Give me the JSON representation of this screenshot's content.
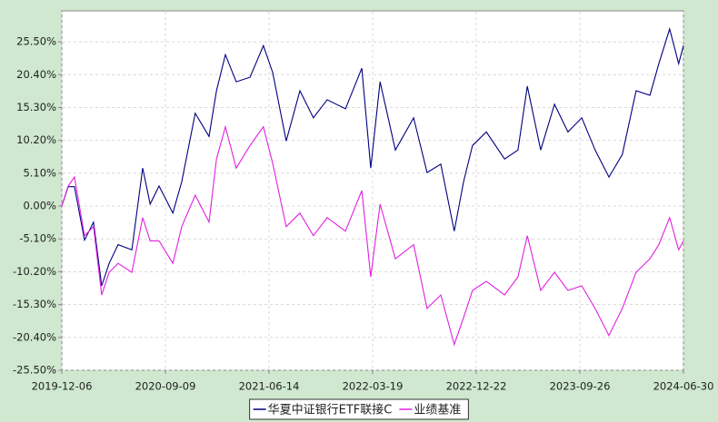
{
  "chart_data": {
    "type": "line",
    "x": [
      "2019-12-06",
      "2019-12-23",
      "2020-01-09",
      "2020-02-05",
      "2020-02-29",
      "2020-03-22",
      "2020-04-11",
      "2020-05-05",
      "2020-06-11",
      "2020-07-10",
      "2020-07-30",
      "2020-08-23",
      "2020-09-29",
      "2020-10-23",
      "2020-11-28",
      "2021-01-04",
      "2021-01-24",
      "2021-02-17",
      "2021-03-18",
      "2021-04-24",
      "2021-05-30",
      "2021-06-24",
      "2021-07-30",
      "2021-09-05",
      "2021-10-11",
      "2021-11-17",
      "2022-01-05",
      "2022-02-18",
      "2022-03-14",
      "2022-04-08",
      "2022-05-19",
      "2022-07-07",
      "2022-08-12",
      "2022-09-18",
      "2022-10-24",
      "2022-11-18",
      "2022-12-12",
      "2023-01-18",
      "2023-03-08",
      "2023-04-13",
      "2023-05-08",
      "2023-06-13",
      "2023-07-20",
      "2023-08-25",
      "2023-10-01",
      "2023-11-06",
      "2023-12-13",
      "2024-01-18",
      "2024-02-24",
      "2024-04-01",
      "2024-04-25",
      "2024-05-24",
      "2024-06-17",
      "2024-06-30"
    ],
    "series": [
      {
        "name": "华夏中证银行ETF联接C",
        "color": "#000080",
        "values": [
          0,
          3.0,
          3.0,
          -5.3,
          -2.5,
          -12.4,
          -8.9,
          -6.0,
          -6.8,
          5.9,
          0.3,
          3.1,
          -1.1,
          3.8,
          14.4,
          10.8,
          17.9,
          23.5,
          19.3,
          20.0,
          24.9,
          20.7,
          10.1,
          17.9,
          13.7,
          16.5,
          15.1,
          21.4,
          5.9,
          19.3,
          8.7,
          13.7,
          5.2,
          6.5,
          -3.9,
          3.8,
          9.4,
          11.5,
          7.3,
          8.7,
          18.6,
          8.7,
          15.8,
          11.5,
          13.7,
          8.7,
          4.5,
          8.0,
          17.9,
          17.2,
          22.1,
          27.5,
          22.1,
          24.9
        ]
      },
      {
        "name": "业绩基准",
        "color": "#e020e0",
        "values": [
          0,
          3.1,
          4.5,
          -4.6,
          -3.2,
          -13.8,
          -10.3,
          -8.9,
          -10.3,
          -1.8,
          -5.4,
          -5.4,
          -8.9,
          -3.2,
          1.7,
          -2.5,
          7.3,
          12.3,
          5.9,
          9.4,
          12.3,
          6.6,
          -3.2,
          -1.1,
          -4.6,
          -1.8,
          -3.9,
          2.4,
          -11.0,
          0.3,
          -8.2,
          -6.0,
          -15.9,
          -13.8,
          -21.5,
          -17.3,
          -13.1,
          -11.7,
          -13.8,
          -11.0,
          -4.6,
          -13.1,
          -10.3,
          -13.1,
          -12.4,
          -15.9,
          -20.1,
          -15.9,
          -10.3,
          -8.2,
          -6.0,
          -1.8,
          -6.8,
          -5.4
        ]
      }
    ],
    "xlim": [
      "2019-12-06",
      "2024-06-30"
    ],
    "xticks": [
      "2019-12-06",
      "2020-09-09",
      "2021-06-14",
      "2022-03-19",
      "2022-12-22",
      "2023-09-26",
      "2024-06-30"
    ],
    "ylim": [
      -25.5,
      30.3
    ],
    "yticks": [
      {
        "value": -25.5,
        "label": "-25.50%"
      },
      {
        "value": -20.4,
        "label": "-20.40%"
      },
      {
        "value": -15.3,
        "label": "-15.30%"
      },
      {
        "value": -10.2,
        "label": "-10.20%"
      },
      {
        "value": -5.1,
        "label": "-5.10%"
      },
      {
        "value": 0,
        "label": "0.00%"
      },
      {
        "value": 5.1,
        "label": "5.10%"
      },
      {
        "value": 10.2,
        "label": "10.20%"
      },
      {
        "value": 15.3,
        "label": "15.30%"
      },
      {
        "value": 20.4,
        "label": "20.40%"
      },
      {
        "value": 25.5,
        "label": "25.50%"
      }
    ],
    "grid": true
  }
}
